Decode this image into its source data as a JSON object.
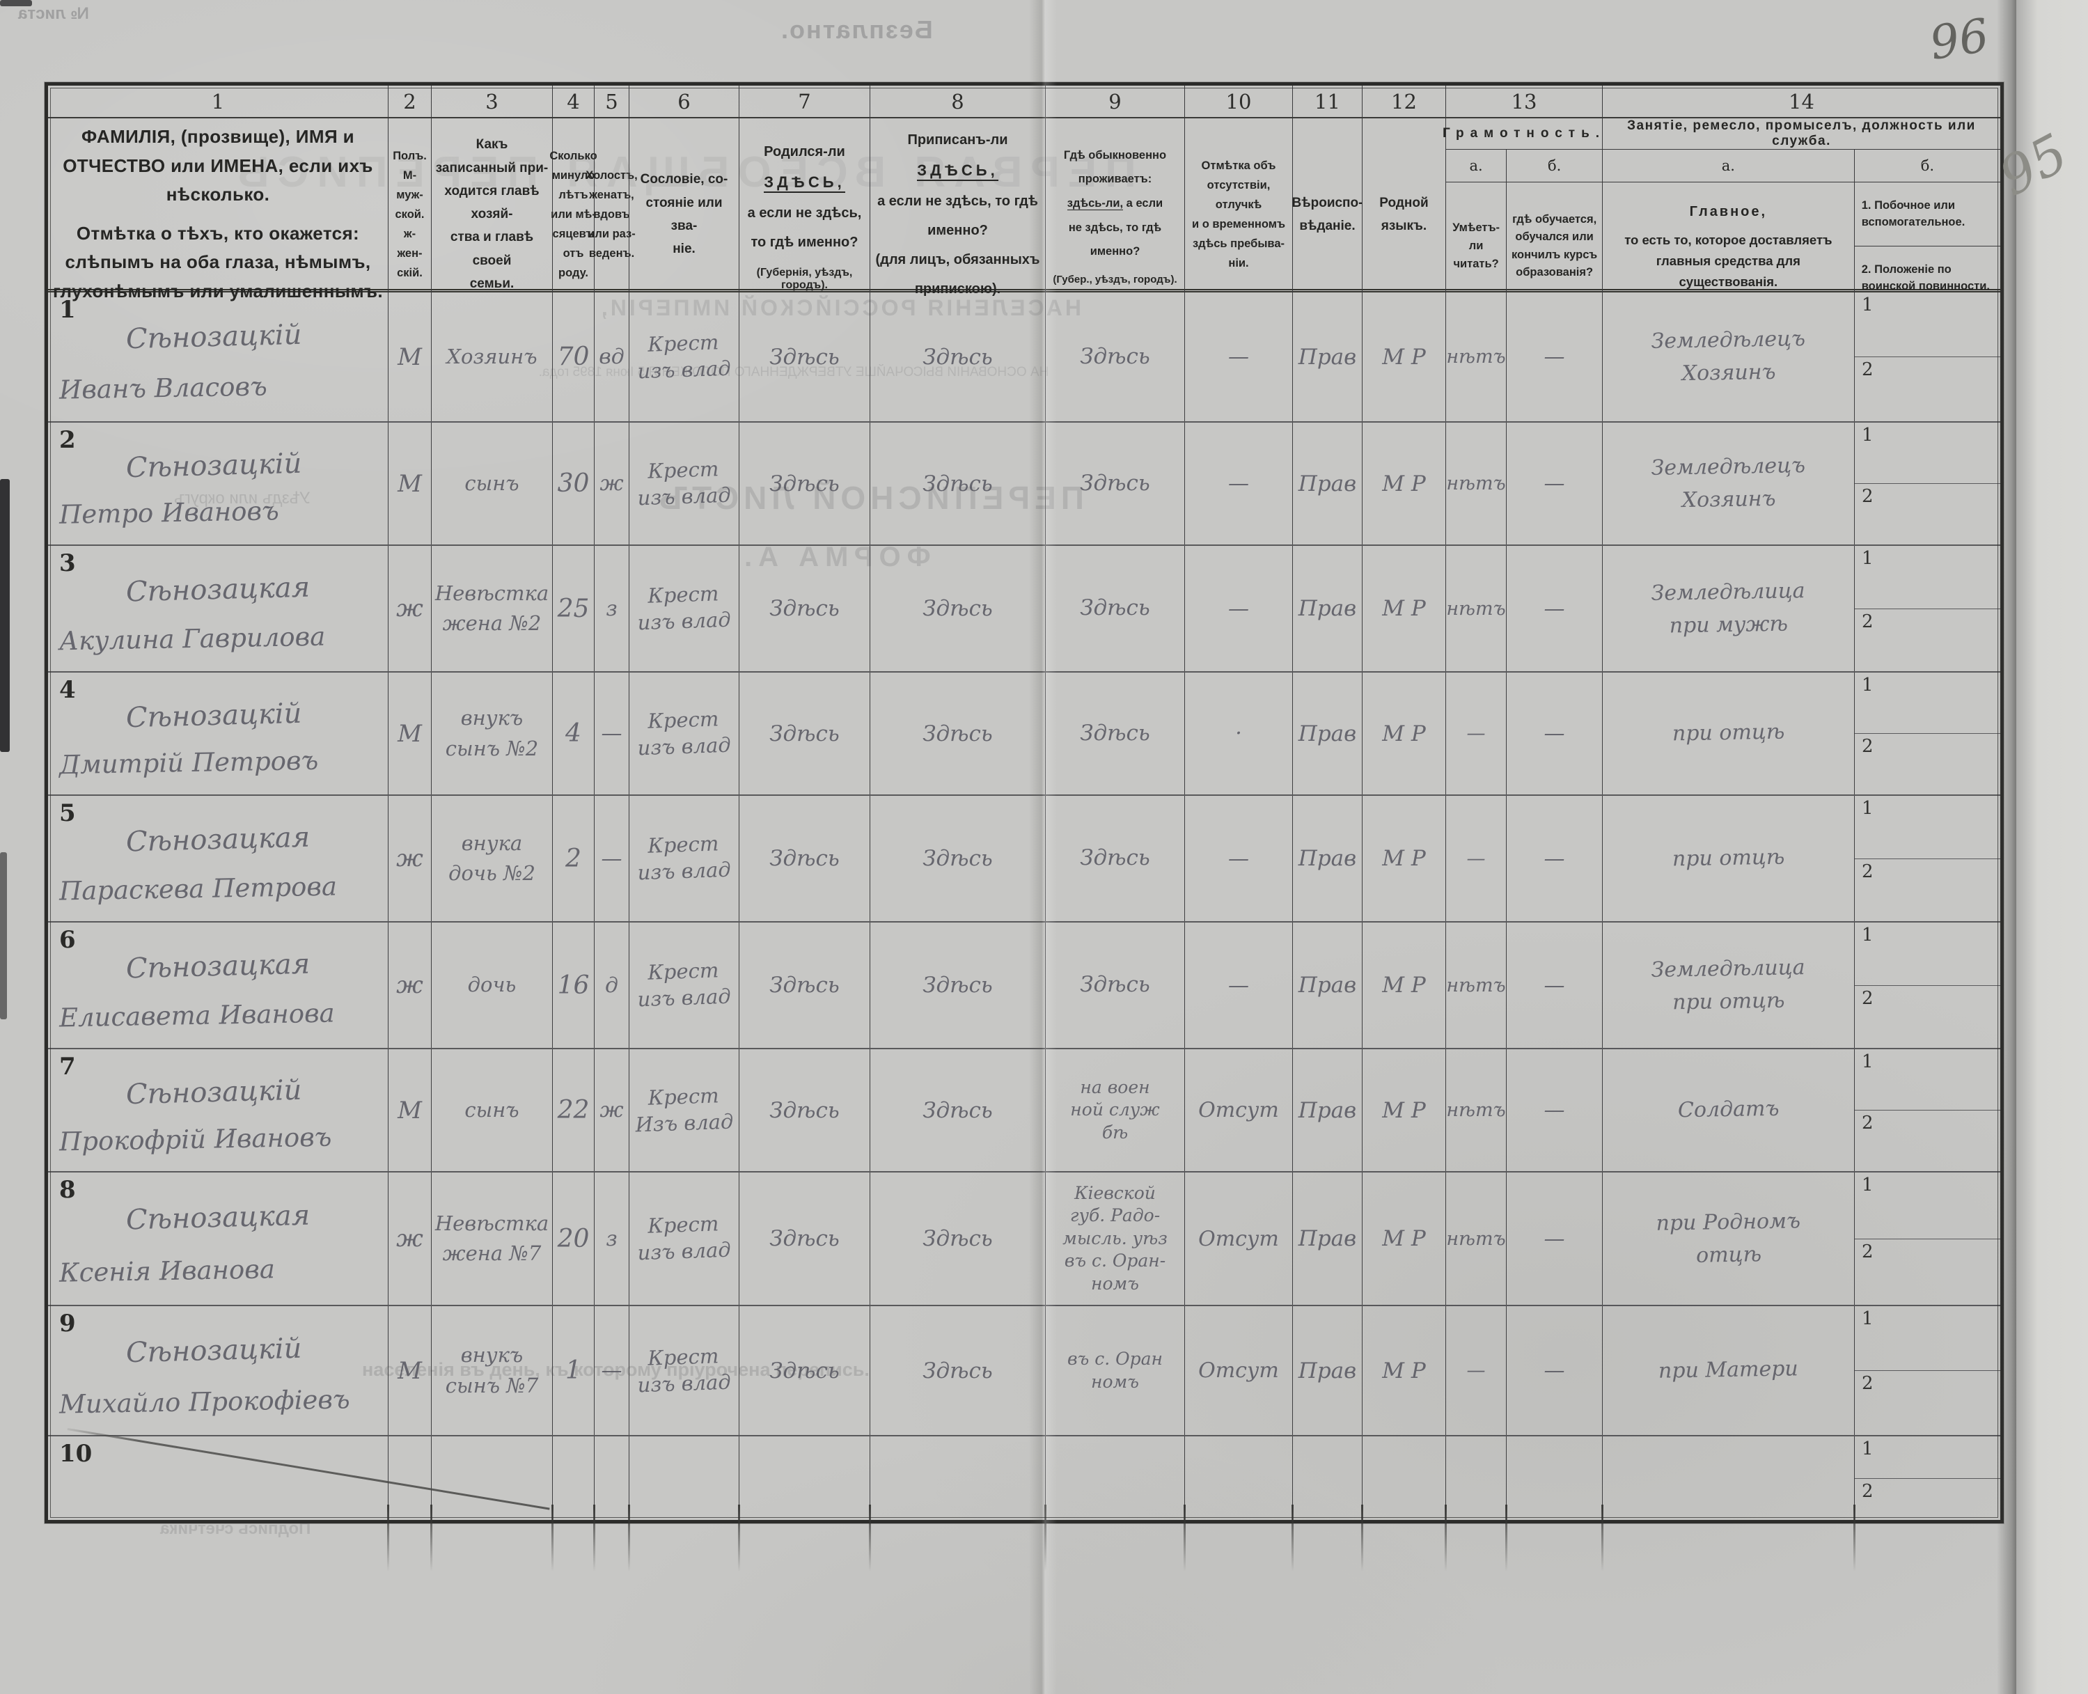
{
  "artifacts": {
    "page_number_corner": "96",
    "page_number_margin": "95",
    "bleed": {
      "free_label": "Безплатно.",
      "sheet_no": "№ листа",
      "title1": "ПЕРВАЯ ВСЕОБЩАЯ ПЕРЕПИСЬ",
      "title2": "НАСЕЛЕНІЯ РОССІЙСКОЙ ИМПЕРІИ,",
      "title3": "НА ОСНОВАНІИ ВЫСОЧАЙШЕ УТВЕРЖДЕННАГО ПОЛОЖЕНІЯ 5 Іюня 1895 года.",
      "form1": "ПЕРЕПИСНОЙ ЛИСТЪ",
      "form2": "ФОРМА А.",
      "district": "Уѣздъ или округъ",
      "note": "населенія въ день, къ которому пріурочена перепись.",
      "signature": "Подпись счетчика"
    }
  },
  "side": {
    "one": "1",
    "two": "2"
  },
  "header": {
    "numbers": [
      "1",
      "2",
      "3",
      "4",
      "5",
      "6",
      "7",
      "8",
      "9",
      "10",
      "11",
      "12",
      "13",
      "14"
    ],
    "col1_p1": "ФАМИЛІЯ, (прозвище), ИМЯ и ОТЧЕСТВО или ИМЕНА, если ихъ нѣсколько.",
    "col1_p2": "Отмѣтка о тѣхъ, кто окажется: слѣпымъ на оба глаза, нѣмымъ, глухонѣмымъ или умалишеннымъ.",
    "col2": "Полъ.\nМ-муж-\nской.\nж-жен-\nскій.",
    "col3": "Какъ записанный при-\nходится главѣ хозяй-\nства и главѣ своей\nсемьи.",
    "col4": "Сколько\nминуло\nлѣтъ\nили мѣ-\nсяцевъ\nотъ роду.",
    "col5": "Холостъ,\nженатъ,\nвдовъ\nили раз-\nведенъ.",
    "col6": "Сословіе, со-\nстояніе или зва-\nніе.",
    "col7": {
      "l1a": "Родился-ли",
      "l1b": "ЗДѢСЬ,",
      "l2": "а если не здѣсь,",
      "l3": "то гдѣ именно?",
      "l4": "(Губернія, уѣздъ, городъ)."
    },
    "col8": {
      "l1a": "Приписанъ-ли",
      "l1b": "ЗДѢСЬ,",
      "l2": "а если не здѣсь, то гдѣ",
      "l3": "именно?",
      "l4": "(для лицъ, обязанныхъ",
      "l5": "припискою)."
    },
    "col9": {
      "l1": "Гдѣ обыкновенно",
      "l2": "проживаетъ:",
      "l3u": "здѣсь-ли,",
      "l3b": " а если",
      "l4": "не здѣсь, то гдѣ",
      "l5": "именно?",
      "l6": "(Губер., уѣздъ, городъ)."
    },
    "col10": "Отмѣтка объ\nотсутствіи, отлучкѣ\nи о временномъ\nздѣсь пребыва-\nніи.",
    "col11": "Вѣроиспо-\nвѣданіе.",
    "col12": "Родной\nязыкъ.",
    "col13": {
      "title": "Грамотность.",
      "a_label": "а.",
      "b_label": "б.",
      "a_text": "Умѣетъ-\nли\nчитать?",
      "b_text": "гдѣ обучается,\nобучался или\nкончилъ курсъ\nобразованія?"
    },
    "col14": {
      "title": "Занятіе, ремесло, промыселъ, должность или служба.",
      "a_label": "а.",
      "b_label": "б.",
      "a_main": "Главное,",
      "a_sub": "то есть то, которое доставляетъ\nглавныя средства для существованія.",
      "b1": "1. Побочное или вспомогательное.",
      "b2": "2. Положеніе по воинской повинности."
    }
  },
  "rows": [
    {
      "num": "1",
      "surname": "Сѣнозацкій",
      "name": "Иванъ Власовъ",
      "sex": "М",
      "rel": "Хозяинъ",
      "age": "70",
      "mar": "вд",
      "est": "Крест\nизъ влад",
      "born": "Здѣсь",
      "reg": "Здѣсь",
      "res": "Здѣсь",
      "abs": "—",
      "faith": "Прав",
      "lang": "М Р",
      "read": "нѣтъ",
      "edu": "—",
      "occ": "Земледѣлецъ\nХозяинъ"
    },
    {
      "num": "2",
      "surname": "Сѣнозацкій",
      "name": "Петро Ивановъ",
      "sex": "М",
      "rel": "сынъ",
      "age": "30",
      "mar": "ж",
      "est": "Крест\nизъ влад",
      "born": "Здѣсь",
      "reg": "Здѣсь",
      "res": "Здѣсь",
      "abs": "—",
      "faith": "Прав",
      "lang": "М Р",
      "read": "нѣтъ",
      "edu": "—",
      "occ": "Земледѣлецъ\nХозяинъ"
    },
    {
      "num": "3",
      "surname": "Сѣнозацкая",
      "name": "Акулина Гаврилова",
      "sex": "ж",
      "rel": "Невѣстка\nжена №2",
      "age": "25",
      "mar": "з",
      "est": "Крест\nизъ влад",
      "born": "Здѣсь",
      "reg": "Здѣсь",
      "res": "Здѣсь",
      "abs": "—",
      "faith": "Прав",
      "lang": "М Р",
      "read": "нѣтъ",
      "edu": "—",
      "occ": "Земледѣлица\nпри мужѣ"
    },
    {
      "num": "4",
      "surname": "Сѣнозацкій",
      "name": "Дмитрій Петровъ",
      "sex": "М",
      "rel": "внукъ\nсынъ №2",
      "age": "4",
      "mar": "—",
      "est": "Крест\nизъ влад",
      "born": "Здѣсь",
      "reg": "Здѣсь",
      "res": "Здѣсь",
      "abs": "·",
      "faith": "Прав",
      "lang": "М Р",
      "read": "—",
      "edu": "—",
      "occ": "при отцѣ"
    },
    {
      "num": "5",
      "surname": "Сѣнозацкая",
      "name": "Параскева Петрова",
      "sex": "ж",
      "rel": "внука\nдочь №2",
      "age": "2",
      "mar": "—",
      "est": "Крест\nизъ влад",
      "born": "Здѣсь",
      "reg": "Здѣсь",
      "res": "Здѣсь",
      "abs": "—",
      "faith": "Прав",
      "lang": "М Р",
      "read": "—",
      "edu": "—",
      "occ": "при отцѣ"
    },
    {
      "num": "6",
      "surname": "Сѣнозацкая",
      "name": "Елисавета Иванова",
      "sex": "ж",
      "rel": "дочь",
      "age": "16",
      "mar": "д",
      "est": "Крест\nизъ влад",
      "born": "Здѣсь",
      "reg": "Здѣсь",
      "res": "Здѣсь",
      "abs": "—",
      "faith": "Прав",
      "lang": "М Р",
      "read": "нѣтъ",
      "edu": "—",
      "occ": "Земледѣлица\nпри отцѣ"
    },
    {
      "num": "7",
      "surname": "Сѣнозацкій",
      "name": "Прокофрій Ивановъ",
      "sex": "М",
      "rel": "сынъ",
      "age": "22",
      "mar": "ж",
      "est": "Крест\nИзъ влад",
      "born": "Здѣсь",
      "reg": "Здѣсь",
      "res": "на воен\nной служ\nбѣ",
      "abs": "Отсут",
      "faith": "Прав",
      "lang": "М Р",
      "read": "нѣтъ",
      "edu": "—",
      "occ": "Солдатъ"
    },
    {
      "num": "8",
      "surname": "Сѣнозацкая",
      "name": "Ксенія Иванова",
      "sex": "ж",
      "rel": "Невѣстка\nжена №7",
      "age": "20",
      "mar": "з",
      "est": "Крест\nизъ влад",
      "born": "Здѣсь",
      "reg": "Здѣсь",
      "res": "Кіевской\nгуб. Радо-\nмысль. уѣз\nвъ с. Оран-\nномъ",
      "abs": "Отсут",
      "faith": "Прав",
      "lang": "М Р",
      "read": "нѣтъ",
      "edu": "—",
      "occ": "при Родномъ\nотцѣ"
    },
    {
      "num": "9",
      "surname": "Сѣнозацкій",
      "name": "Михайло Прокофіевъ",
      "sex": "М",
      "rel": "внукъ\nсынъ №7",
      "age": "1",
      "mar": "—",
      "est": "Крест\nизъ влад",
      "born": "Здѣсь",
      "reg": "Здѣсь",
      "res": "въ с. Оран\nномъ",
      "abs": "Отсут",
      "faith": "Прав",
      "lang": "М Р",
      "read": "—",
      "edu": "—",
      "occ": "при Матери"
    },
    {
      "num": "10",
      "surname": "",
      "name": "",
      "sex": "",
      "rel": "",
      "age": "",
      "mar": "",
      "est": "",
      "born": "",
      "reg": "",
      "res": "",
      "abs": "",
      "faith": "",
      "lang": "",
      "read": "",
      "edu": "",
      "occ": ""
    }
  ]
}
